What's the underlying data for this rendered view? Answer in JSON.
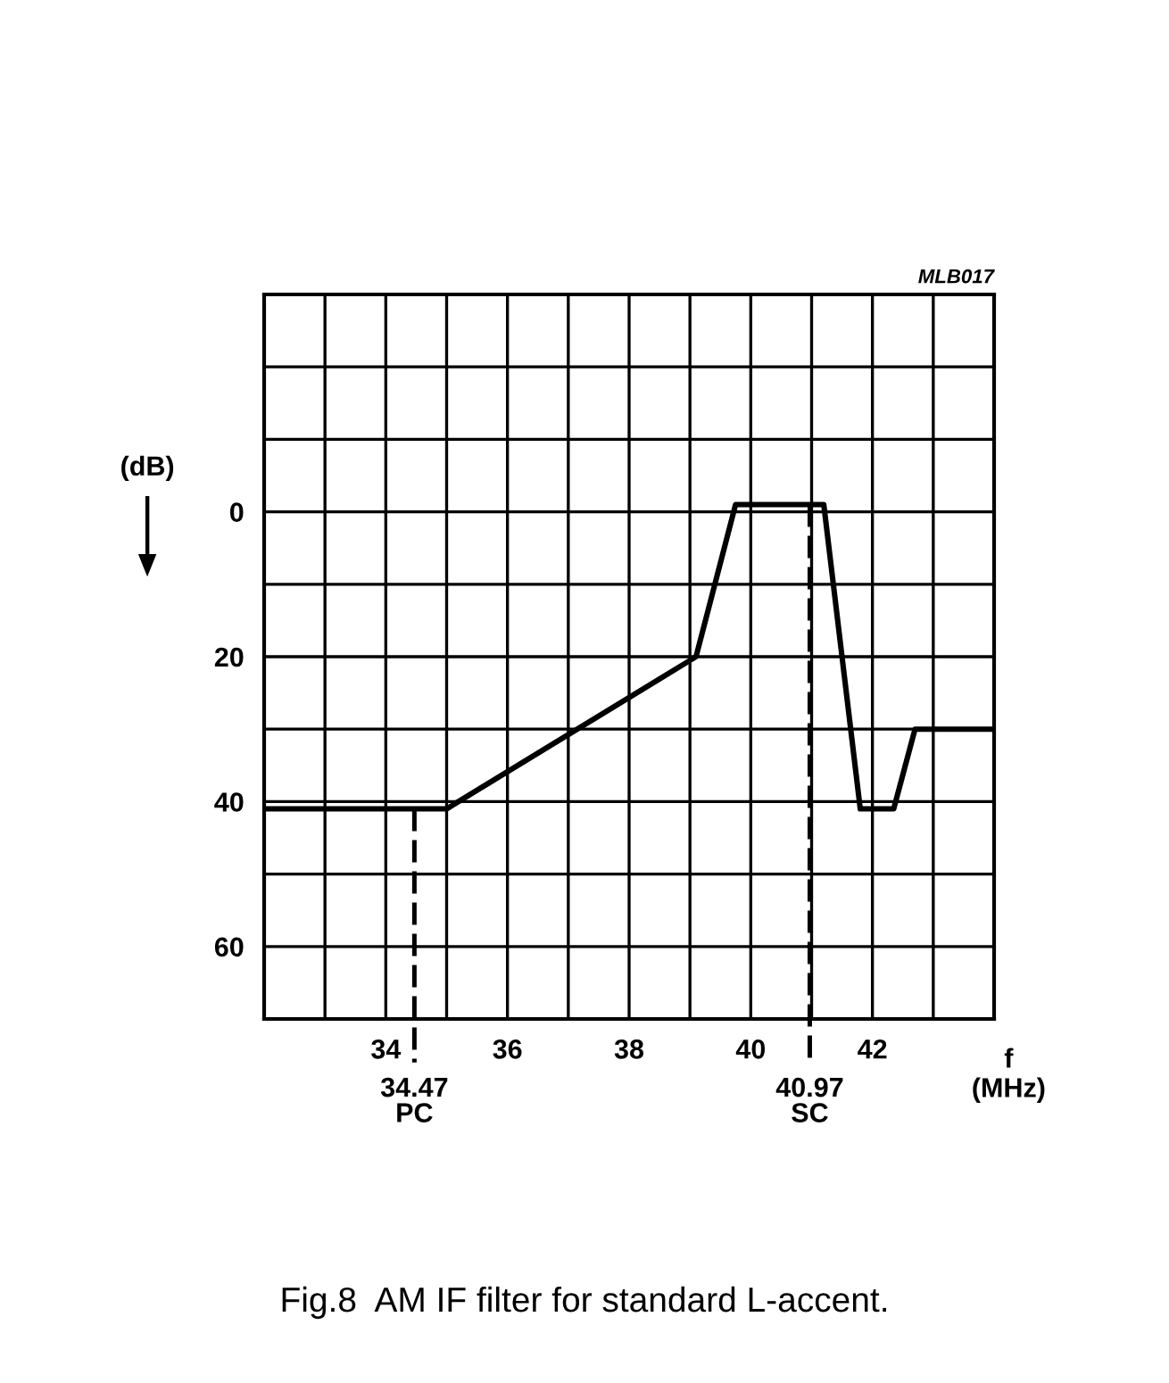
{
  "chart_data": {
    "type": "line",
    "ylabel": "(dB)",
    "xlabel": "f\n(MHz)",
    "x": [
      32,
      35.0,
      39.1,
      39.75,
      41.2,
      41.8,
      42.35,
      42.7,
      44
    ],
    "series": [
      {
        "color": "#000000",
        "values": [
          41,
          41,
          20,
          -1,
          -1,
          41,
          41,
          30,
          30
        ]
      }
    ],
    "xlim": [
      32,
      44
    ],
    "xticks": [
      {
        "value": 33,
        "label": null
      },
      34,
      {
        "value": 35,
        "label": null
      },
      36,
      {
        "value": 37,
        "label": null
      },
      38,
      {
        "value": 39,
        "label": null
      },
      40,
      {
        "value": 41,
        "label": null
      },
      42,
      {
        "value": 43,
        "label": null
      }
    ],
    "ylim": [
      70,
      -30
    ],
    "yticks": [
      {
        "value": -20,
        "label": null
      },
      {
        "value": -10,
        "label": null
      },
      0,
      {
        "value": 10,
        "label": null
      },
      20,
      {
        "value": 30,
        "label": null
      },
      40,
      {
        "value": 50,
        "label": null
      },
      60
    ],
    "grid": true,
    "line_style": "solid",
    "marker": "none",
    "ref_lines": [
      {
        "axis": "x",
        "value": 34.47,
        "label": "34.47\nPC",
        "line_style": "dashed"
      },
      {
        "axis": "x",
        "value": 40.97,
        "label": "40.97\nSC",
        "line_style": "dashed"
      }
    ],
    "annotations": [
      "MLB017",
      "Fig.8  AM IF filter for standard L-accent."
    ]
  }
}
